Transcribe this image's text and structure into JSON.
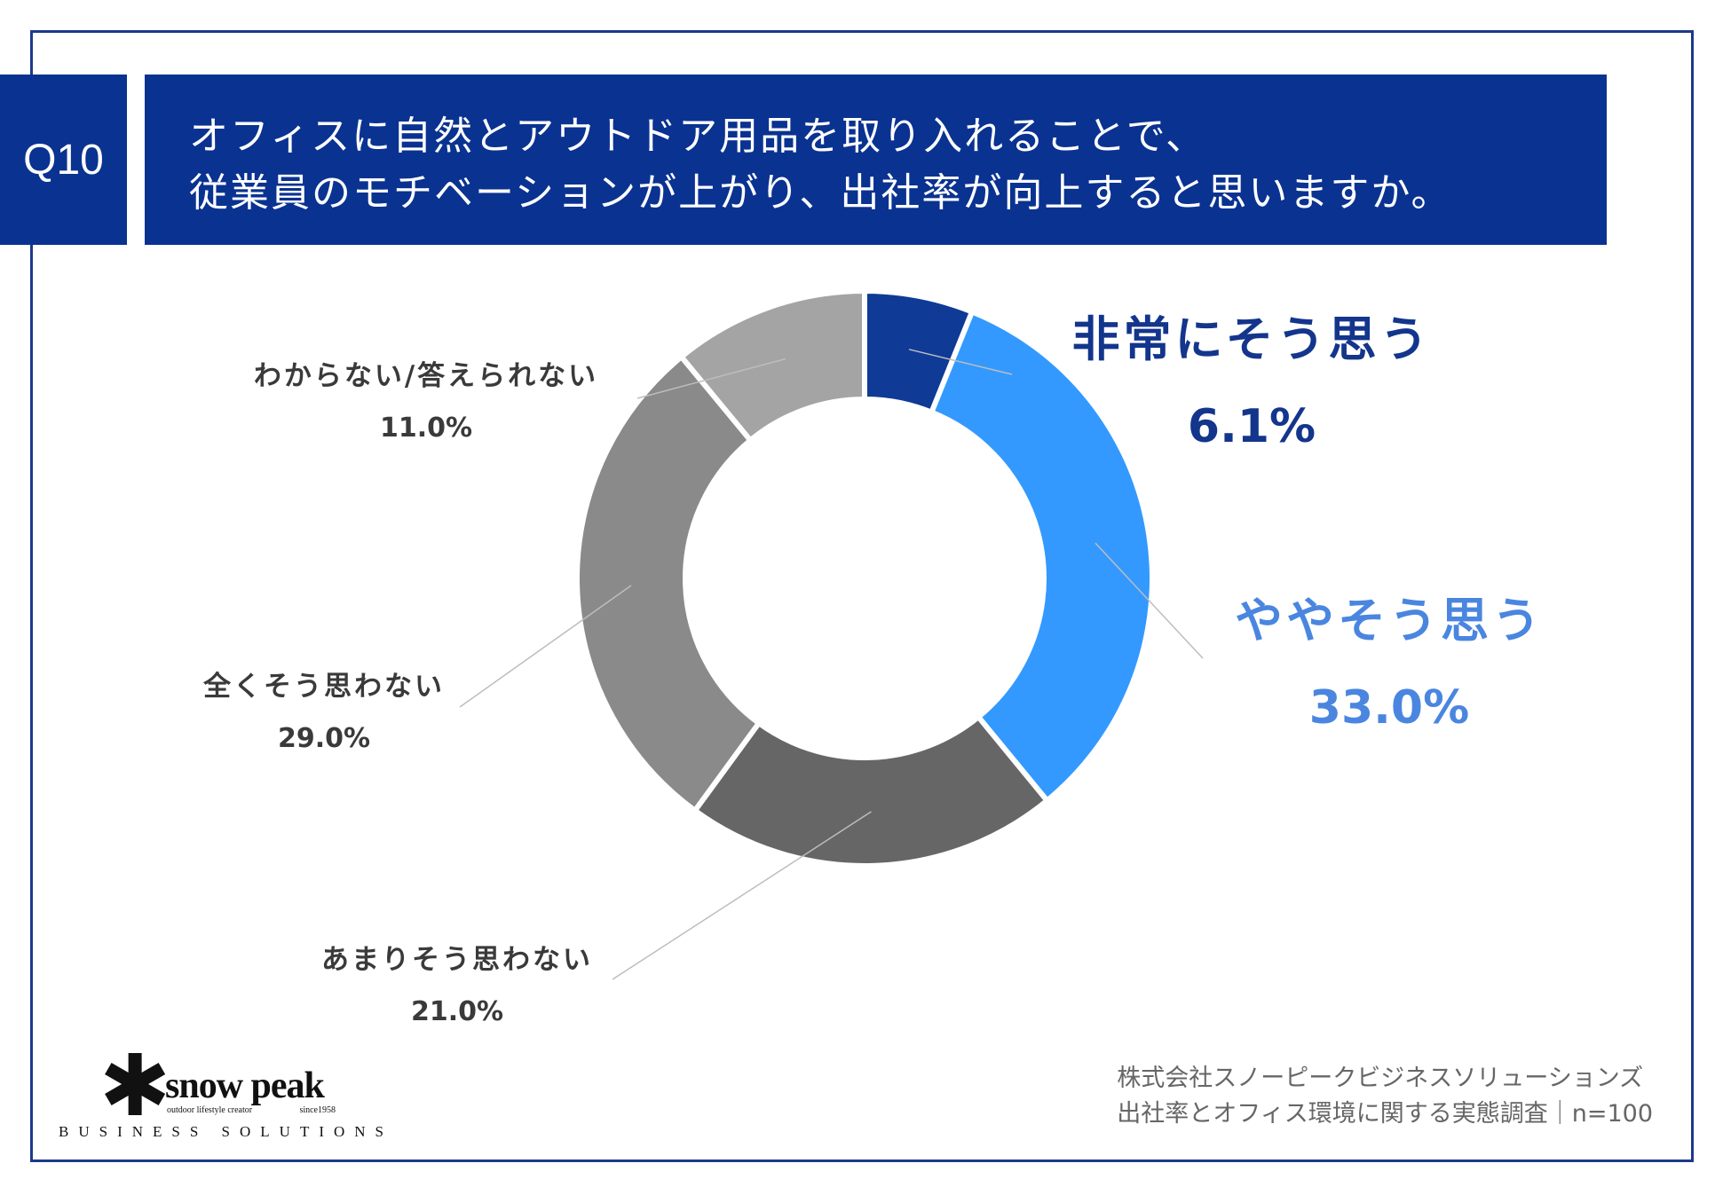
{
  "question": {
    "number": "Q10",
    "line1": "オフィスに自然とアウトドア用品を取り入れることで、",
    "line2": "従業員のモチベーションが上がり、出社率が向上すると思いますか。"
  },
  "chart_data": {
    "type": "pie",
    "variant": "donut",
    "start": "top, clockwise",
    "categories": [
      "非常にそう思う",
      "ややそう思う",
      "あまりそう思わない",
      "全くそう思わない",
      "わからない/答えられない"
    ],
    "values": [
      6.1,
      33.0,
      21.0,
      29.0,
      11.0
    ],
    "labels": [
      "6.1%",
      "33.0%",
      "21.0%",
      "29.0%",
      "11.0%"
    ],
    "colors": [
      "#0f3b96",
      "#3399ff",
      "#666666",
      "#8a8a8a",
      "#a4a4a4"
    ],
    "label_colors": [
      "#13358c",
      "#4a86e0",
      "#3a3a3a",
      "#3a3a3a",
      "#3a3a3a"
    ]
  },
  "source": {
    "line1": "株式会社スノーピークビジネスソリューションズ",
    "line2": "出社率とオフィス環境に関する実態調査｜n=100"
  },
  "logo": {
    "brand": "snow peak",
    "tagline_left": "outdoor lifestyle creator",
    "tagline_right": "since1958",
    "division": "BUSINESS SOLUTIONS"
  }
}
